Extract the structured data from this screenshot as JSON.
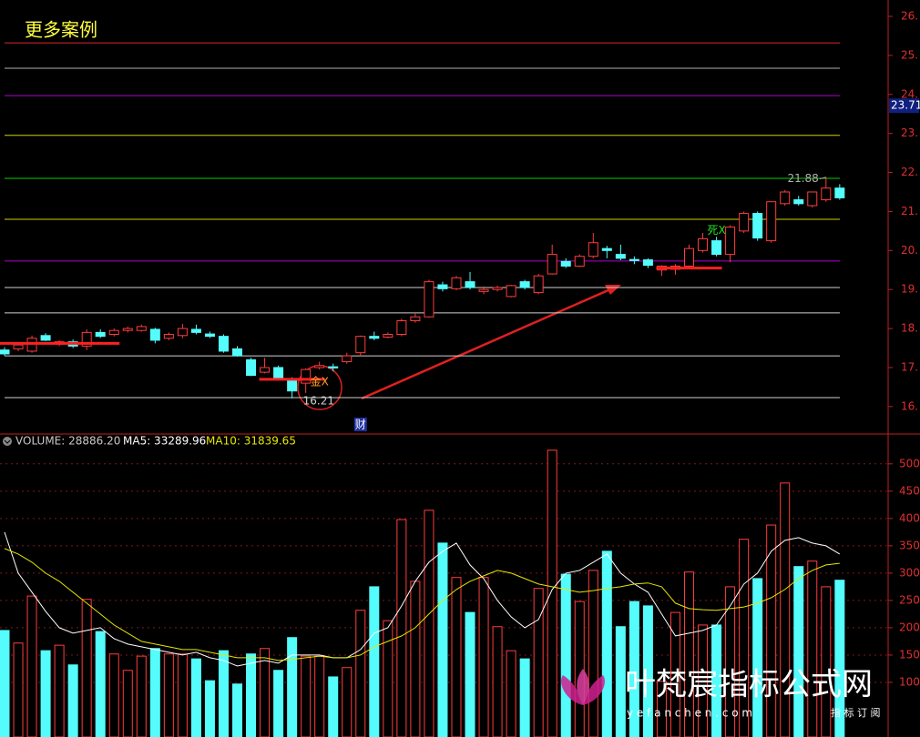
{
  "chart_data": [
    {
      "type": "candlestick",
      "title": "更多案例",
      "up_color": "#ff3c3c",
      "down_color": "#54fcfc",
      "open": [
        17.45,
        17.48,
        17.42,
        17.82,
        17.6,
        17.66,
        17.55,
        17.9,
        17.85,
        17.95,
        17.95,
        17.98,
        17.75,
        17.82,
        17.98,
        17.86,
        17.8,
        17.48,
        17.2,
        16.88,
        17.0,
        16.7,
        16.6,
        17.0,
        17.02,
        17.15,
        17.38,
        17.8,
        17.78,
        17.85,
        18.2,
        18.3,
        19.12,
        19.02,
        19.2,
        18.95,
        19.0,
        18.82,
        19.2,
        18.92,
        19.4,
        19.72,
        19.6,
        19.85,
        20.05,
        19.9,
        19.77,
        19.76,
        19.5,
        19.52,
        19.6,
        20.0,
        20.25,
        19.9,
        20.5,
        20.95,
        20.25,
        21.2,
        21.3,
        21.15,
        21.3,
        21.6
      ],
      "high": [
        17.52,
        17.62,
        17.82,
        17.88,
        17.7,
        17.72,
        17.98,
        17.98,
        18.0,
        18.05,
        18.1,
        18.02,
        17.9,
        18.12,
        18.1,
        17.92,
        17.85,
        17.55,
        17.25,
        17.25,
        17.05,
        16.75,
        16.98,
        17.15,
        17.1,
        17.38,
        17.82,
        17.92,
        17.9,
        18.25,
        18.4,
        19.25,
        19.2,
        19.35,
        19.45,
        19.08,
        19.1,
        19.12,
        19.25,
        19.4,
        20.15,
        19.8,
        19.9,
        20.45,
        20.12,
        20.15,
        19.85,
        19.8,
        19.62,
        19.65,
        20.15,
        20.45,
        20.35,
        20.65,
        21.0,
        21.0,
        21.25,
        21.55,
        21.4,
        21.5,
        21.88,
        21.7
      ],
      "low": [
        17.3,
        17.42,
        17.38,
        17.68,
        17.55,
        17.5,
        17.45,
        17.76,
        17.8,
        17.9,
        17.92,
        17.62,
        17.7,
        17.75,
        17.85,
        17.76,
        17.38,
        17.28,
        16.78,
        16.85,
        16.7,
        16.21,
        16.35,
        16.95,
        16.9,
        17.1,
        17.3,
        17.7,
        17.75,
        17.8,
        18.15,
        18.28,
        18.95,
        18.98,
        19.0,
        18.88,
        18.95,
        18.8,
        19.0,
        18.88,
        19.38,
        19.55,
        19.58,
        19.8,
        19.8,
        19.75,
        19.65,
        19.55,
        19.35,
        19.38,
        19.55,
        19.95,
        19.85,
        19.7,
        20.45,
        20.25,
        20.2,
        21.15,
        21.15,
        21.1,
        21.25,
        21.3
      ],
      "close": [
        17.35,
        17.58,
        17.75,
        17.7,
        17.66,
        17.55,
        17.9,
        17.8,
        17.95,
        18.0,
        18.05,
        17.7,
        17.85,
        18.0,
        17.9,
        17.8,
        17.42,
        17.3,
        16.8,
        17.0,
        16.72,
        16.4,
        16.95,
        17.05,
        16.99,
        17.3,
        17.8,
        17.75,
        17.85,
        18.2,
        18.3,
        19.2,
        19.02,
        19.3,
        19.05,
        19.0,
        19.05,
        19.1,
        19.05,
        19.35,
        19.9,
        19.6,
        19.85,
        20.2,
        20.0,
        19.8,
        19.74,
        19.62,
        19.6,
        19.6,
        20.05,
        20.3,
        19.9,
        20.6,
        20.95,
        20.32,
        21.25,
        21.5,
        21.2,
        21.5,
        21.6,
        21.35
      ],
      "ylim": [
        15.32,
        26.42
      ],
      "yticks": [
        {
          "value": 16,
          "label": "16."
        },
        {
          "value": 17,
          "label": "17."
        },
        {
          "value": 18,
          "label": "18."
        },
        {
          "value": 19,
          "label": "19."
        },
        {
          "value": 20,
          "label": "20."
        },
        {
          "value": 21,
          "label": "21."
        },
        {
          "value": 22,
          "label": "22."
        },
        {
          "value": 23,
          "label": "23."
        },
        {
          "value": 24,
          "label": "24."
        },
        {
          "value": 25,
          "label": "25."
        },
        {
          "value": 26,
          "label": "26."
        }
      ],
      "levels": [
        {
          "value": 25.32,
          "color": "#e0242a"
        },
        {
          "value": 24.67,
          "color": "#b0b0b0"
        },
        {
          "value": 23.97,
          "color": "#b000d0"
        },
        {
          "value": 22.95,
          "color": "#d0d000"
        },
        {
          "value": 21.85,
          "color": "#00d000"
        },
        {
          "value": 20.8,
          "color": "#d0d000"
        },
        {
          "value": 19.73,
          "color": "#b000d0"
        },
        {
          "value": 19.05,
          "color": "#d0d0d0"
        },
        {
          "value": 18.4,
          "color": "#d0d0d0"
        },
        {
          "value": 17.3,
          "color": "#d0d0d0"
        },
        {
          "value": 16.23,
          "color": "#d0d0d0"
        }
      ],
      "support_lines": [
        {
          "from": 0,
          "to": 8,
          "value": 17.62
        },
        {
          "from": 19,
          "to": 23,
          "value": 16.7
        },
        {
          "from": 48,
          "to": 52,
          "value": 19.55
        }
      ],
      "high_label": {
        "index": 60,
        "value": 21.88
      },
      "low_label": {
        "index": 21,
        "value": 16.21
      },
      "signals": [
        {
          "label": "金X",
          "index": 23,
          "color": "#ffa020"
        },
        {
          "label": "死X",
          "index": 52,
          "color": "#20e020"
        }
      ],
      "event_label": {
        "label": "财",
        "index": 26
      },
      "axis_marker": {
        "value": 23.71
      }
    },
    {
      "type": "volume",
      "header": [
        "VOLUME: 28886.20",
        "MA5: 33289.96",
        "MA10: 31839.65"
      ],
      "series": [
        {
          "name": "VOLUME",
          "color": "#c8c8c8",
          "values": [
            195,
            172,
            258,
            158,
            168,
            132,
            252,
            193,
            152,
            122,
            148,
            162,
            152,
            152,
            143,
            103,
            158,
            97,
            152,
            162,
            122,
            182,
            148,
            148,
            110,
            127,
            232,
            275,
            213,
            398,
            285,
            415,
            355,
            292,
            228,
            292,
            202,
            158,
            143,
            272,
            525,
            298,
            248,
            305,
            340,
            202,
            248,
            240,
            102,
            228,
            302,
            205,
            205,
            275,
            362,
            290,
            388,
            465,
            312,
            322,
            275,
            287
          ]
        },
        {
          "name": "MA5",
          "color": "#ffffff",
          "values": [
            375,
            300,
            265,
            230,
            200,
            190,
            195,
            200,
            180,
            170,
            165,
            160,
            155,
            150,
            155,
            145,
            140,
            130,
            135,
            140,
            135,
            150,
            150,
            150,
            145,
            145,
            160,
            190,
            200,
            240,
            285,
            320,
            340,
            355,
            315,
            290,
            250,
            220,
            200,
            215,
            270,
            300,
            305,
            320,
            335,
            300,
            280,
            265,
            225,
            185,
            190,
            195,
            205,
            240,
            280,
            300,
            340,
            360,
            365,
            355,
            350,
            335
          ]
        },
        {
          "name": "MA10",
          "color": "#e6e600",
          "values": [
            345,
            335,
            320,
            300,
            285,
            265,
            245,
            225,
            205,
            190,
            175,
            170,
            165,
            160,
            160,
            155,
            150,
            145,
            145,
            145,
            140,
            142,
            145,
            148,
            145,
            145,
            150,
            165,
            175,
            185,
            200,
            225,
            250,
            270,
            285,
            295,
            305,
            300,
            290,
            280,
            275,
            270,
            265,
            268,
            272,
            275,
            280,
            282,
            275,
            245,
            235,
            233,
            232,
            235,
            238,
            245,
            255,
            270,
            290,
            305,
            315,
            318
          ]
        }
      ],
      "ylim": [
        0,
        533
      ],
      "yticks": [
        100,
        150,
        200,
        250,
        300,
        350,
        400,
        450,
        500
      ]
    }
  ],
  "watermark": {
    "name": "叶梵宸指标公式网",
    "url": "y e f a n c h e n . c o m",
    "tag": "指 标 订 阅"
  }
}
